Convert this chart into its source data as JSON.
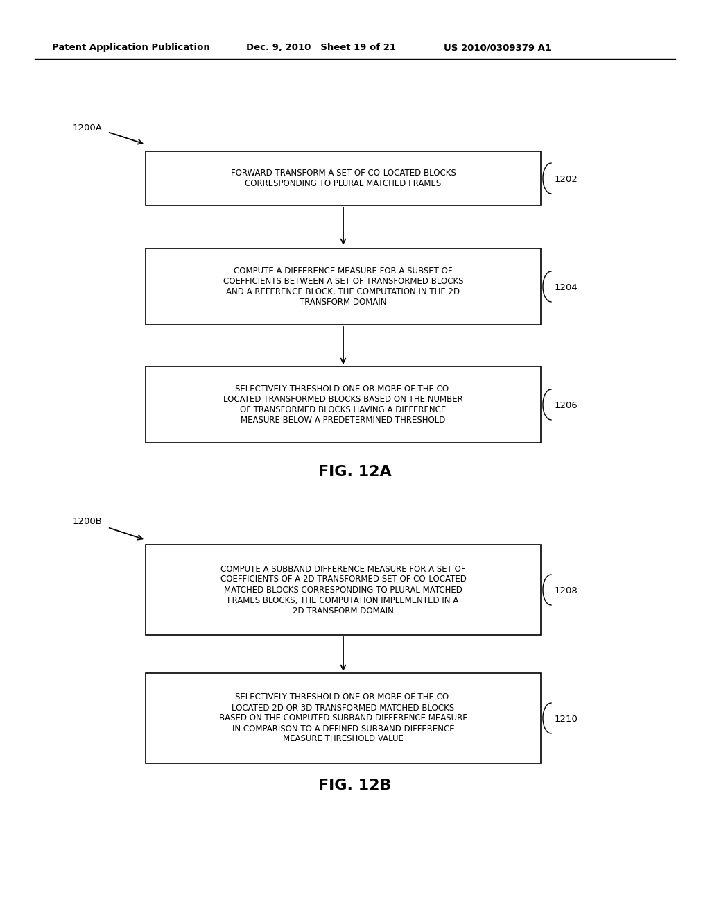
{
  "header_left": "Patent Application Publication",
  "header_mid": "Dec. 9, 2010   Sheet 19 of 21",
  "header_right": "US 2010/0309379 A1",
  "fig_a_label": "1200A",
  "fig_b_label": "1200B",
  "fig_a_caption": "FIG. 12A",
  "fig_b_caption": "FIG. 12B",
  "box1_text": "FORWARD TRANSFORM A SET OF CO-LOCATED BLOCKS\nCORRESPONDING TO PLURAL MATCHED FRAMES",
  "box1_ref": "1202",
  "box2_text": "COMPUTE A DIFFERENCE MEASURE FOR A SUBSET OF\nCOEFFICIENTS BETWEEN A SET OF TRANSFORMED BLOCKS\nAND A REFERENCE BLOCK, THE COMPUTATION IN THE 2D\nTRANSFORM DOMAIN",
  "box2_ref": "1204",
  "box3_text": "SELECTIVELY THRESHOLD ONE OR MORE OF THE CO-\nLOCATED TRANSFORMED BLOCKS BASED ON THE NUMBER\nOF TRANSFORMED BLOCKS HAVING A DIFFERENCE\nMEASURE BELOW A PREDETERMINED THRESHOLD",
  "box3_ref": "1206",
  "box4_text": "COMPUTE A SUBBAND DIFFERENCE MEASURE FOR A SET OF\nCOEFFICIENTS OF A 2D TRANSFORMED SET OF CO-LOCATED\nMATCHED BLOCKS CORRESPONDING TO PLURAL MATCHED\nFRAMES BLOCKS, THE COMPUTATION IMPLEMENTED IN A\n2D TRANSFORM DOMAIN",
  "box4_ref": "1208",
  "box5_text": "SELECTIVELY THRESHOLD ONE OR MORE OF THE CO-\nLOCATED 2D OR 3D TRANSFORMED MATCHED BLOCKS\nBASED ON THE COMPUTED SUBBAND DIFFERENCE MEASURE\nIN COMPARISON TO A DEFINED SUBBAND DIFFERENCE\nMEASURE THRESHOLD VALUE",
  "box5_ref": "1210",
  "bg_color": "#ffffff",
  "box_edge_color": "#000000",
  "text_color": "#000000",
  "font_size_header": 9.5,
  "font_size_box": 8.5,
  "font_size_ref": 9.5,
  "font_size_label": 9.5,
  "font_size_caption": 16
}
